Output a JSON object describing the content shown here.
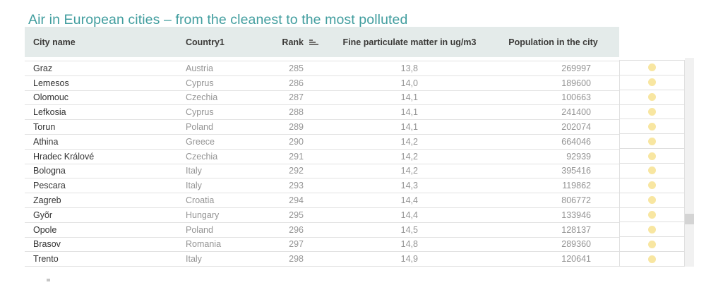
{
  "title": "Air in European cities – from the cleanest to the most polluted",
  "colors": {
    "title": "#429e9f",
    "header_bg": "#e4ebea",
    "header_text": "#3b3a38",
    "city_text": "#333333",
    "muted_text": "#949494",
    "row_border": "#e2e2e2",
    "dot_col_border": "#dfdfdf",
    "dot_fill": "#f8e6a1",
    "scrollbar_track": "#f1f1f1",
    "scrollbar_thumb": "#d4d4d4"
  },
  "chart_data": {
    "type": "table",
    "title": "Air in European cities – from the cleanest to the most polluted",
    "columns": [
      "City name",
      "Country1",
      "Rank",
      "Fine particulate matter in ug/m3",
      "Population in the city"
    ],
    "sort": {
      "column": "Rank",
      "direction": "ascending"
    },
    "row_marker": {
      "shape": "circle",
      "color": "#f8e6a1",
      "name": "yellow-dot"
    },
    "rows": [
      {
        "city": "Graz",
        "country": "Austria",
        "rank": 285,
        "pm": "13,8",
        "population": 269997
      },
      {
        "city": "Lemesos",
        "country": "Cyprus",
        "rank": 286,
        "pm": "14,0",
        "population": 189600
      },
      {
        "city": "Olomouc",
        "country": "Czechia",
        "rank": 287,
        "pm": "14,1",
        "population": 100663
      },
      {
        "city": "Lefkosia",
        "country": "Cyprus",
        "rank": 288,
        "pm": "14,1",
        "population": 241400
      },
      {
        "city": "Torun",
        "country": "Poland",
        "rank": 289,
        "pm": "14,1",
        "population": 202074
      },
      {
        "city": "Athina",
        "country": "Greece",
        "rank": 290,
        "pm": "14,2",
        "population": 664046
      },
      {
        "city": "Hradec Králové",
        "country": "Czechia",
        "rank": 291,
        "pm": "14,2",
        "population": 92939
      },
      {
        "city": "Bologna",
        "country": "Italy",
        "rank": 292,
        "pm": "14,2",
        "population": 395416
      },
      {
        "city": "Pescara",
        "country": "Italy",
        "rank": 293,
        "pm": "14,3",
        "population": 119862
      },
      {
        "city": "Zagreb",
        "country": "Croatia",
        "rank": 294,
        "pm": "14,4",
        "population": 806772
      },
      {
        "city": "Gyõr",
        "country": "Hungary",
        "rank": 295,
        "pm": "14,4",
        "population": 133946
      },
      {
        "city": "Opole",
        "country": "Poland",
        "rank": 296,
        "pm": "14,5",
        "population": 128137
      },
      {
        "city": "Brasov",
        "country": "Romania",
        "rank": 297,
        "pm": "14,8",
        "population": 289360
      },
      {
        "city": "Trento",
        "country": "Italy",
        "rank": 298,
        "pm": "14,9",
        "population": 120641
      }
    ]
  }
}
